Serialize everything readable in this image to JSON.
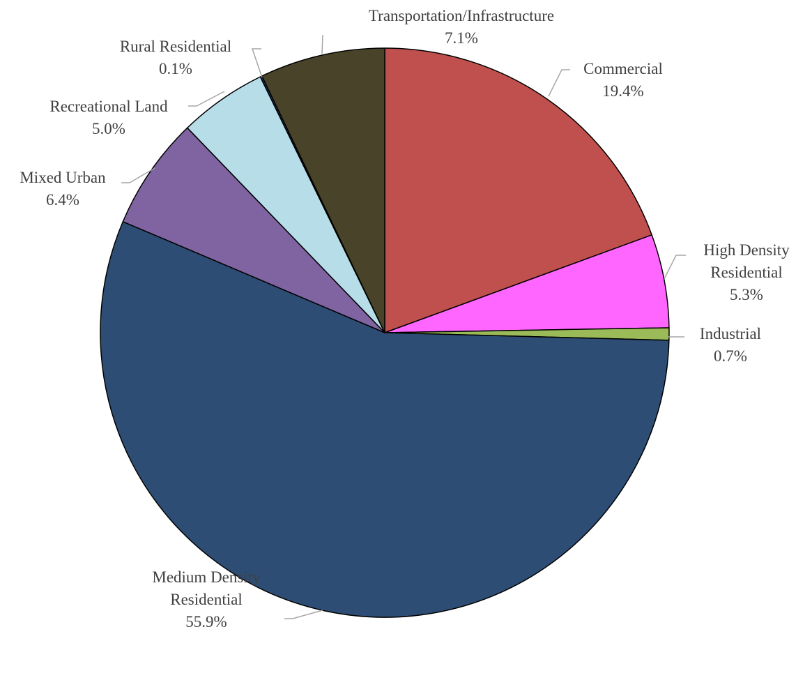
{
  "chart_data": {
    "type": "pie",
    "title": "",
    "slices": [
      {
        "label": "Commercial",
        "label_lines": [
          "Commercial",
          "19.4%"
        ],
        "value": 19.4,
        "color": "#c0504d"
      },
      {
        "label": "High Density Residential",
        "label_lines": [
          "High Density",
          "Residential",
          "5.3%"
        ],
        "value": 5.3,
        "color": "#ff66ff"
      },
      {
        "label": "Industrial",
        "label_lines": [
          "Industrial",
          "0.7%"
        ],
        "value": 0.7,
        "color": "#9bbb59"
      },
      {
        "label": "Medium Density Residential",
        "label_lines": [
          "Medium Density",
          "Residential",
          "55.9%"
        ],
        "value": 55.9,
        "color": "#2e4d74"
      },
      {
        "label": "Mixed Urban",
        "label_lines": [
          "Mixed Urban",
          "6.4%"
        ],
        "value": 6.4,
        "color": "#8064a2"
      },
      {
        "label": "Recreational Land",
        "label_lines": [
          "Recreational Land",
          "5.0%"
        ],
        "value": 5.0,
        "color": "#b7dde8"
      },
      {
        "label": "Rural Residential",
        "label_lines": [
          "Rural Residential",
          "0.1%"
        ],
        "value": 0.1,
        "color": "#1f3864"
      },
      {
        "label": "Transportation/Infrastructure",
        "label_lines": [
          "Transportation/Infrastructure",
          "7.1%"
        ],
        "value": 7.1,
        "color": "#494429"
      }
    ],
    "start_angle": "12 o'clock",
    "direction": "clockwise",
    "legend": "none",
    "data_labels": "outside-with-leader-lines"
  }
}
